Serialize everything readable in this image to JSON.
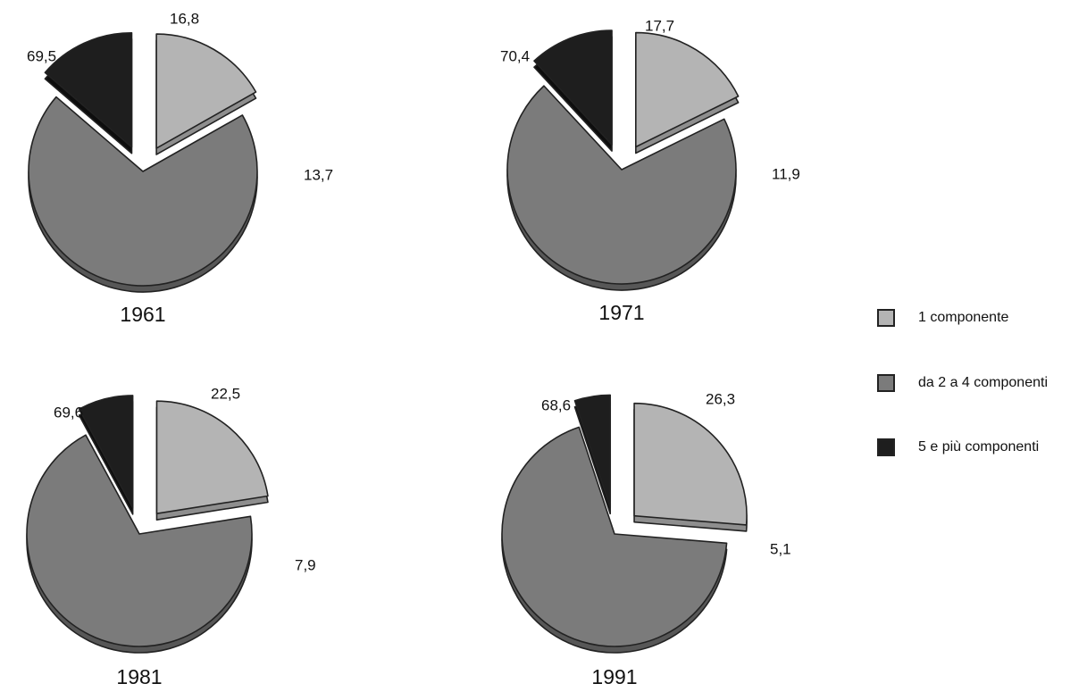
{
  "chart_data": [
    {
      "type": "pie",
      "title": "1961",
      "categories": [
        "1 componente",
        "da 2 a 4 componenti",
        "5 e più componenti"
      ],
      "values": [
        16.8,
        69.5,
        13.7
      ],
      "value_labels": [
        "16,8",
        "69,5",
        "13,7"
      ],
      "exploded": [
        true,
        false,
        true
      ]
    },
    {
      "type": "pie",
      "title": "1971",
      "categories": [
        "1 componente",
        "da 2 a 4 componenti",
        "5 e più componenti"
      ],
      "values": [
        17.7,
        70.4,
        11.9
      ],
      "value_labels": [
        "17,7",
        "70,4",
        "11,9"
      ],
      "exploded": [
        true,
        false,
        true
      ]
    },
    {
      "type": "pie",
      "title": "1981",
      "categories": [
        "1 componente",
        "da 2 a 4 componenti",
        "5 e più componenti"
      ],
      "values": [
        22.5,
        69.6,
        7.9
      ],
      "value_labels": [
        "22,5",
        "69,6",
        "7,9"
      ],
      "exploded": [
        true,
        false,
        true
      ]
    },
    {
      "type": "pie",
      "title": "1991",
      "categories": [
        "1 componente",
        "da 2 a 4 componenti",
        "5 e più componenti"
      ],
      "values": [
        26.3,
        68.6,
        5.1
      ],
      "value_labels": [
        "26,3",
        "68,6",
        "5,1"
      ],
      "exploded": [
        true,
        false,
        true
      ]
    }
  ],
  "legend": {
    "placement": "right",
    "items": [
      {
        "label": "1 componente",
        "color": "#b4b4b4"
      },
      {
        "label": "da 2 a 4 componenti",
        "color": "#7b7b7b"
      },
      {
        "label": "5 e più componenti",
        "color": "#1e1e1e"
      }
    ]
  },
  "colors": {
    "slices": [
      "#b4b4b4",
      "#7b7b7b",
      "#1e1e1e"
    ],
    "slices_side": [
      "#8e8e8e",
      "#575757",
      "#0d0d0d"
    ],
    "outline": "#222222"
  }
}
